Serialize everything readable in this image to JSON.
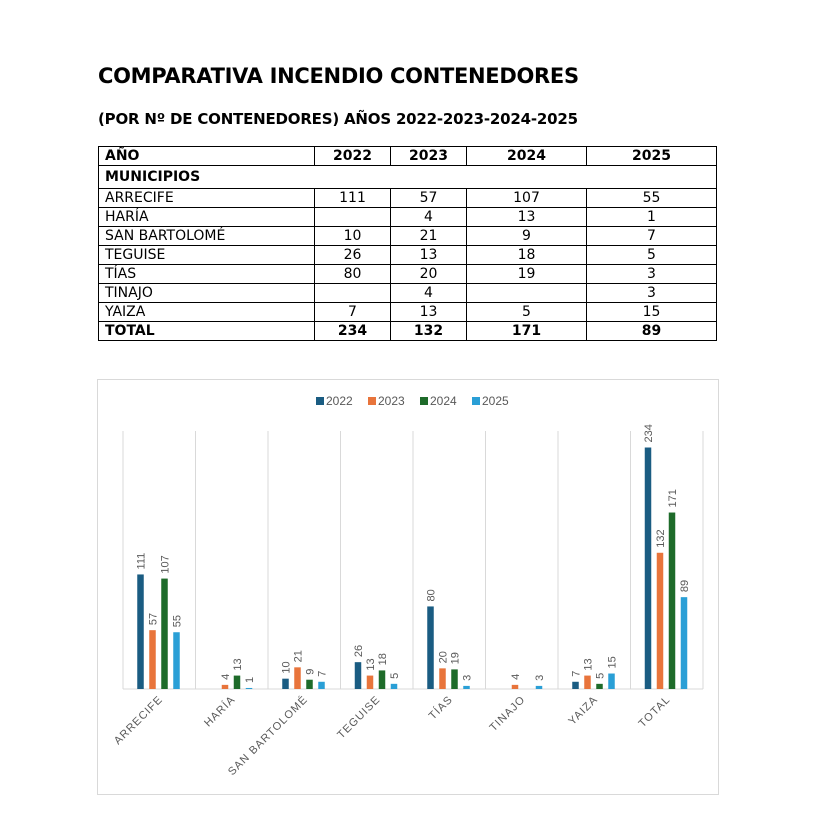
{
  "title": "COMPARATIVA INCENDIO CONTENEDORES",
  "subtitle": "(POR Nº DE CONTENEDORES) AÑOS 2022-2023-2024-2025",
  "table": {
    "header": [
      "AÑO",
      "2022",
      "2023",
      "2024",
      "2025"
    ],
    "section_label": "MUNICIPIOS",
    "rows": [
      [
        "ARRECIFE",
        "111",
        "57",
        "107",
        "55"
      ],
      [
        "HARÍA",
        "",
        "4",
        "13",
        "1"
      ],
      [
        "SAN BARTOLOMÉ",
        "10",
        "21",
        "9",
        "7"
      ],
      [
        "TEGUISE",
        "26",
        "13",
        "18",
        "5"
      ],
      [
        "TÍAS",
        "80",
        "20",
        "19",
        "3"
      ],
      [
        "TINAJO",
        "",
        "4",
        "",
        "3"
      ],
      [
        "YAIZA",
        "7",
        "13",
        "5",
        "15"
      ]
    ],
    "total": [
      "TOTAL",
      "234",
      "132",
      "171",
      "89"
    ]
  },
  "chart_data": {
    "type": "bar",
    "categories": [
      "ARRECIFE",
      "HARÍA",
      "SAN BARTOLOMÉ",
      "TEGUISE",
      "TÍAS",
      "TINAJO",
      "YAIZA",
      "TOTAL"
    ],
    "series": [
      {
        "name": "2022",
        "color": "#1a5c82",
        "values": [
          111,
          null,
          10,
          26,
          80,
          null,
          7,
          234
        ]
      },
      {
        "name": "2023",
        "color": "#e8743b",
        "values": [
          57,
          4,
          21,
          13,
          20,
          4,
          13,
          132
        ]
      },
      {
        "name": "2024",
        "color": "#1e6b2a",
        "values": [
          107,
          13,
          9,
          18,
          19,
          null,
          5,
          171
        ]
      },
      {
        "name": "2025",
        "color": "#2a9fd6",
        "values": [
          55,
          1,
          7,
          5,
          3,
          3,
          15,
          89
        ]
      }
    ],
    "ylim": [
      0,
      250
    ],
    "legend": "top",
    "grid": "vertical category separators",
    "data_labels": true
  }
}
